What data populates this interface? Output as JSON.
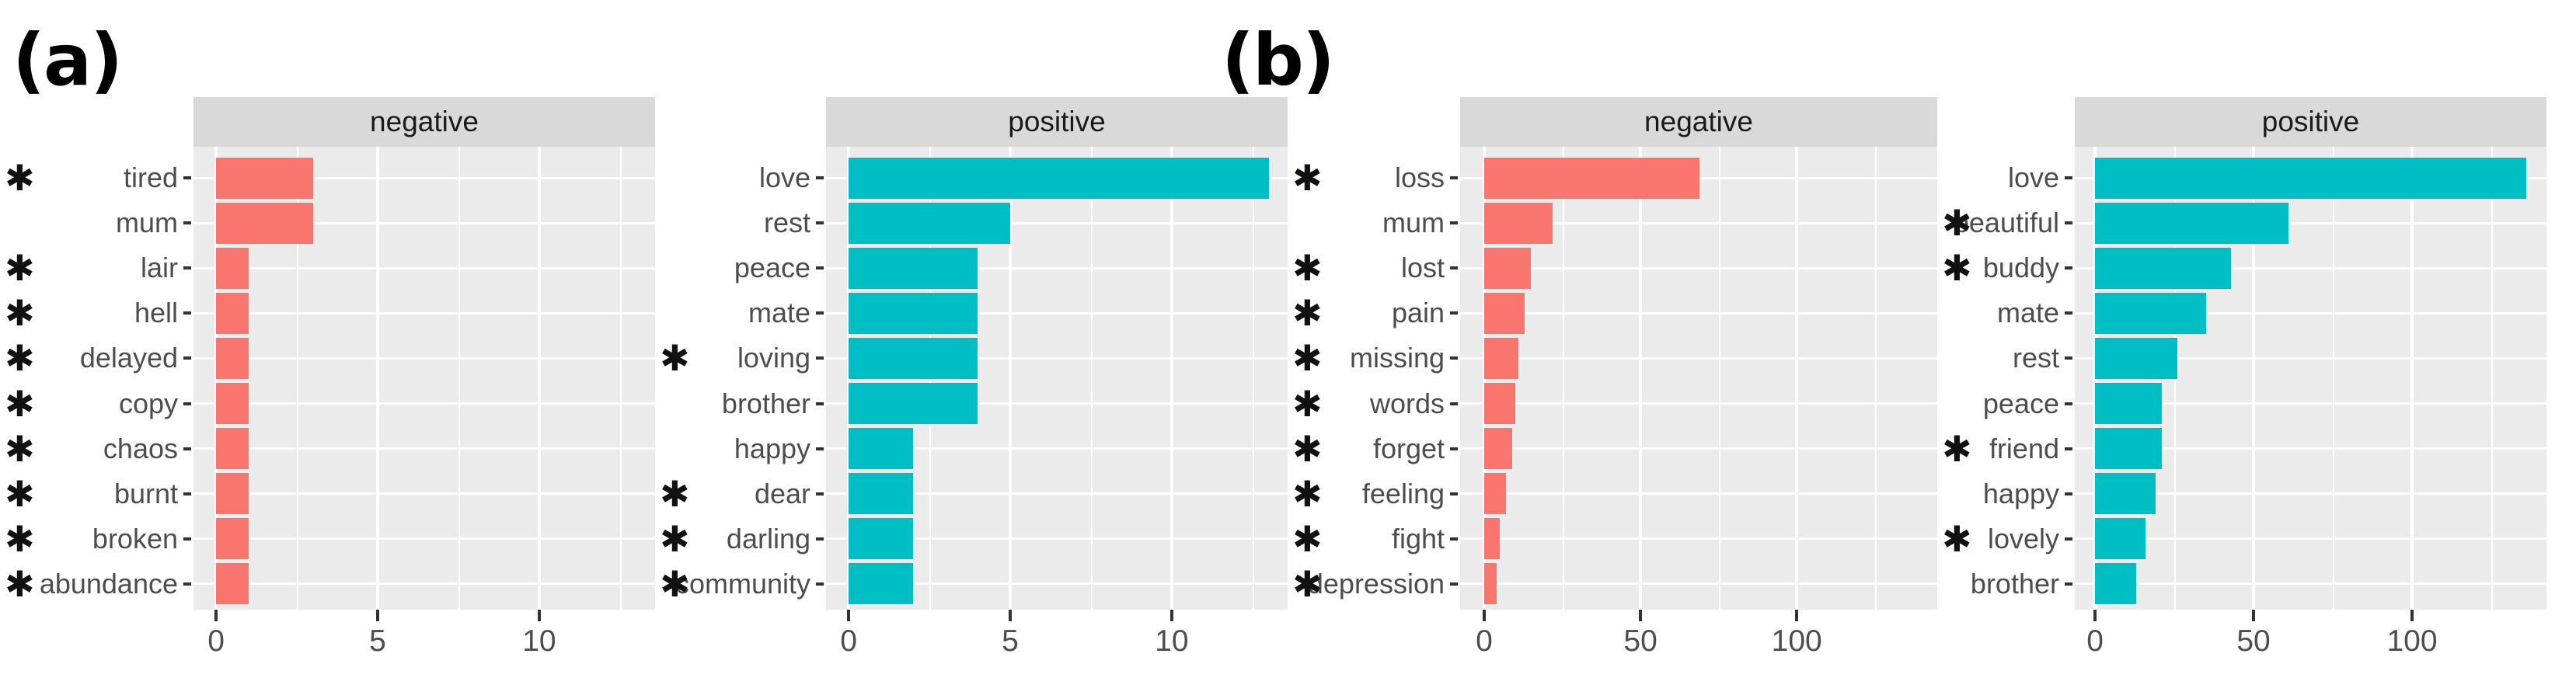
{
  "figure": {
    "panel_a_label": "(a)",
    "panel_b_label": "(b)",
    "star_glyph": "✱"
  },
  "style": {
    "negative_color": "#F8766D",
    "positive_color": "#00BFC4",
    "strip_bg": "#D9D9D9",
    "panel_bg": "#EBEBEB",
    "gridline_color": "#FFFFFF",
    "axis_text_color": "#4D4D4D",
    "tick_color": "#333333",
    "strip_text_color": "#1A1A1A",
    "star_color": "#111111"
  },
  "chart_data": [
    {
      "type": "bar",
      "panel": "(a)",
      "title": "negative",
      "orientation": "horizontal",
      "legend": "none",
      "grid": "on",
      "categories": [
        "tired",
        "mum",
        "lair",
        "hell",
        "delayed",
        "copy",
        "chaos",
        "burnt",
        "broken",
        "abundance"
      ],
      "values": [
        3,
        3,
        1,
        1,
        1,
        1,
        1,
        1,
        1,
        1
      ],
      "starred": [
        true,
        false,
        true,
        true,
        true,
        true,
        true,
        true,
        true,
        true
      ],
      "color_key": "negative",
      "xticks": [
        0,
        5,
        10
      ],
      "xminor": [
        2.5,
        7.5,
        12.5
      ],
      "xlim": [
        0,
        13.5
      ],
      "scale": {
        "x0_frac": 0.049,
        "unit_frac": 0.07
      }
    },
    {
      "type": "bar",
      "panel": "(a)",
      "title": "positive",
      "orientation": "horizontal",
      "legend": "none",
      "grid": "on",
      "categories": [
        "love",
        "rest",
        "peace",
        "mate",
        "loving",
        "brother",
        "happy",
        "dear",
        "darling",
        "community"
      ],
      "values": [
        13,
        5,
        4,
        4,
        4,
        4,
        2,
        2,
        2,
        2
      ],
      "starred": [
        false,
        false,
        false,
        false,
        true,
        false,
        false,
        true,
        true,
        true
      ],
      "color_key": "positive",
      "xticks": [
        0,
        5,
        10
      ],
      "xminor": [
        2.5,
        7.5,
        12.5
      ],
      "xlim": [
        0,
        13.5
      ],
      "scale": {
        "x0_frac": 0.049,
        "unit_frac": 0.07
      }
    },
    {
      "type": "bar",
      "panel": "(b)",
      "title": "negative",
      "orientation": "horizontal",
      "legend": "none",
      "grid": "on",
      "categories": [
        "loss",
        "mum",
        "lost",
        "pain",
        "missing",
        "words",
        "forget",
        "feeling",
        "fight",
        "depression"
      ],
      "values": [
        69,
        22,
        15,
        13,
        11,
        10,
        9,
        7,
        5,
        4
      ],
      "starred": [
        true,
        false,
        true,
        true,
        true,
        true,
        true,
        true,
        true,
        true
      ],
      "color_key": "negative",
      "xticks": [
        0,
        50,
        100
      ],
      "xminor": [
        25,
        75,
        125
      ],
      "xlim": [
        0,
        146
      ],
      "scale": {
        "x0_frac": 0.0505,
        "unit_frac": 0.00655
      }
    },
    {
      "type": "bar",
      "panel": "(b)",
      "title": "positive",
      "orientation": "horizontal",
      "legend": "none",
      "grid": "on",
      "categories": [
        "love",
        "beautiful",
        "buddy",
        "mate",
        "rest",
        "peace",
        "friend",
        "happy",
        "lovely",
        "brother"
      ],
      "values": [
        136,
        61,
        43,
        35,
        26,
        21,
        21,
        19,
        16,
        13
      ],
      "starred": [
        false,
        true,
        true,
        false,
        false,
        false,
        true,
        false,
        true,
        false
      ],
      "color_key": "positive",
      "xticks": [
        0,
        50,
        100
      ],
      "xminor": [
        25,
        75,
        125
      ],
      "xlim": [
        0,
        146
      ],
      "scale": {
        "x0_frac": 0.043,
        "unit_frac": 0.00672
      }
    }
  ]
}
